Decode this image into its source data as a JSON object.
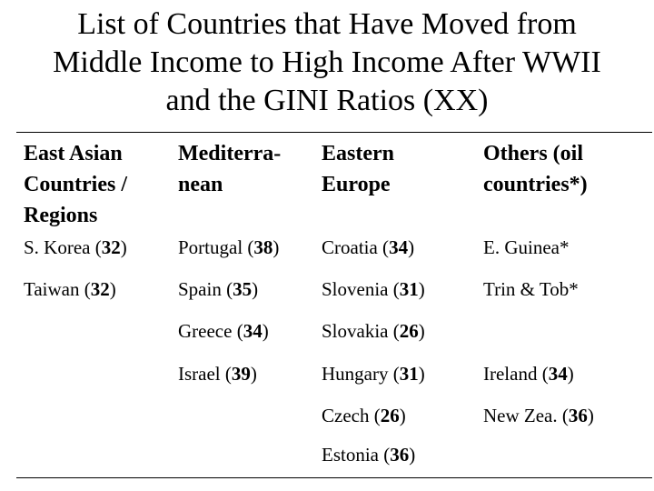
{
  "title": {
    "line1": "List of Countries that Have Moved from",
    "line2": "Middle Income to High Income After WWII",
    "line3": "and the GINI Ratios (XX)"
  },
  "columns": [
    {
      "header_lines": [
        "East Asian",
        "Countries /",
        "Regions"
      ],
      "rows": [
        {
          "name": "S. Korea (",
          "gini": "32",
          "end": ")"
        },
        {
          "name": "Taiwan (",
          "gini": "32",
          "end": ")"
        }
      ]
    },
    {
      "header_lines": [
        "Mediterra-",
        "nean"
      ],
      "rows": [
        {
          "name": "Portugal (",
          "gini": "38",
          "end": ")"
        },
        {
          "name": "Spain (",
          "gini": "35",
          "end": ")"
        },
        {
          "name": "Greece (",
          "gini": "34",
          "end": ")"
        },
        {
          "name": "Israel (",
          "gini": "39",
          "end": ")"
        }
      ]
    },
    {
      "header_lines": [
        "Eastern",
        "Europe"
      ],
      "rows": [
        {
          "name": "Croatia (",
          "gini": "34",
          "end": ")"
        },
        {
          "name": "Slovenia (",
          "gini": "31",
          "end": ")"
        },
        {
          "name": "Slovakia (",
          "gini": "26",
          "end": ")"
        },
        {
          "name": "Hungary (",
          "gini": "31",
          "end": ")"
        },
        {
          "name": "Czech (",
          "gini": "26",
          "end": ")"
        },
        {
          "name": "Estonia (",
          "gini": "36",
          "end": ")"
        }
      ]
    },
    {
      "header_lines": [
        "Others (oil",
        "countries*)"
      ],
      "rows": [
        {
          "name": "E. Guinea*",
          "gini": "",
          "end": ""
        },
        {
          "name": "Trin & Tob*",
          "gini": "",
          "end": ""
        },
        {
          "name": "Ireland (",
          "gini": "34",
          "end": ")"
        },
        {
          "name": "New Zea. (",
          "gini": "36",
          "end": ")"
        }
      ]
    }
  ]
}
